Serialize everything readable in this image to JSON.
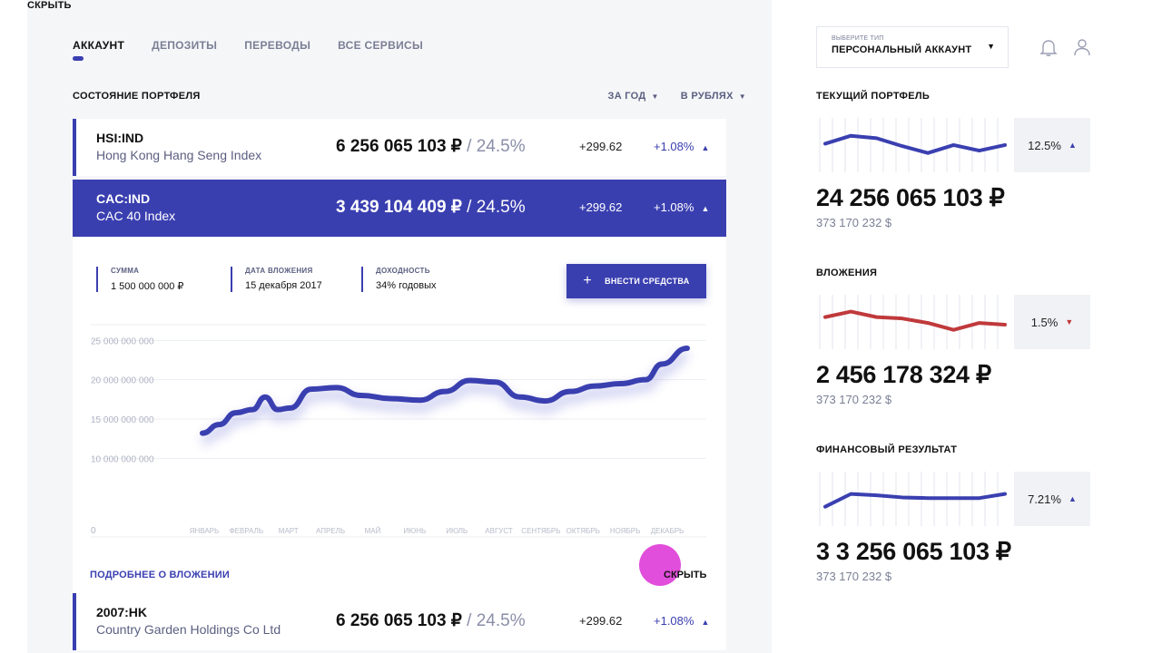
{
  "top_left_label": "СКРЫТЬ",
  "nav": {
    "tabs": [
      "АККАУНТ",
      "ДЕПОЗИТЫ",
      "ПЕРЕВОДЫ",
      "ВСЕ СЕРВИСЫ"
    ],
    "active": 0
  },
  "portfolio": {
    "title": "СОСТОЯНИЕ ПОРТФЕЛЯ",
    "filter_period": "ЗА ГОД",
    "filter_currency": "В РУБЛЯХ",
    "rows": [
      {
        "ticker": "HSI:IND",
        "name": "Hong Kong Hang Seng Index",
        "amount": "6 256 065 103 ₽",
        "share": "/ 24.5%",
        "change": "+299.62",
        "change_pct": "+1.08%"
      },
      {
        "ticker": "CAC:IND",
        "name": "CAC 40 Index",
        "amount": "3 439 104 409 ₽",
        "share": "/ 24.5%",
        "change": "+299.62",
        "change_pct": "+1.08%"
      },
      {
        "ticker": "2007:HK",
        "name": "Country Garden Holdings Co Ltd",
        "amount": "6 256 065 103 ₽",
        "share": "/ 24.5%",
        "change": "+299.62",
        "change_pct": "+1.08%"
      }
    ],
    "detail": {
      "stats": [
        {
          "label": "СУММА",
          "value": "1 500 000 000 ₽"
        },
        {
          "label": "ДАТА ВЛОЖЕНИЯ",
          "value": "15 декабря 2017"
        },
        {
          "label": "ДОХОДНОСТЬ",
          "value": "34% годовых"
        }
      ],
      "deposit_button": "ВНЕСТИ СРЕДСТВА",
      "more_link": "ПОДРОБНЕЕ О ВЛОЖЕНИИ",
      "hide_link": "СКРЫТЬ"
    }
  },
  "chart_data": {
    "type": "line",
    "categories": [
      "ЯНВАРЬ",
      "ФЕВРАЛЬ",
      "МАРТ",
      "АПРЕЛЬ",
      "МАЙ",
      "ИЮНЬ",
      "ИЮЛЬ",
      "АВГУСТ",
      "СЕНТЯБРЬ",
      "ОКТЯБРЬ",
      "НОЯБРЬ",
      "ДЕКАБРЬ"
    ],
    "y_ticks": [
      0,
      10000000000,
      15000000000,
      20000000000,
      25000000000
    ],
    "y_tick_labels": [
      "0",
      "10 000 000 000",
      "15 000 000 000",
      "20 000 000 000",
      "25 000 000 000"
    ],
    "x": [
      0,
      0.4,
      0.8,
      1.2,
      1.5,
      1.8,
      2.1,
      2.6,
      3.2,
      3.8,
      4.5,
      5.2,
      5.8,
      6.4,
      7.0,
      7.6,
      8.2,
      8.8,
      9.4,
      10.0,
      10.6,
      11.0,
      11.6
    ],
    "values": [
      13200000000,
      14300000000,
      15800000000,
      16200000000,
      17800000000,
      16200000000,
      16400000000,
      18800000000,
      19000000000,
      18000000000,
      17600000000,
      17400000000,
      18500000000,
      19900000000,
      19700000000,
      17800000000,
      17300000000,
      18500000000,
      19200000000,
      19500000000,
      20000000000,
      22000000000,
      24000000000
    ],
    "ylim": [
      0,
      27000000000
    ],
    "color": "#3a3fb0",
    "grid": true
  },
  "account": {
    "select_label": "ВЫБЕРИТЕ ТИП",
    "select_value": "ПЕРСОНАЛЬНЫЙ АККАУНТ"
  },
  "summary": [
    {
      "title": "ТЕКУЩИЙ ПОРТФЕЛЬ",
      "value": "24 256 065 103 ₽",
      "usd": "373 170 232 $",
      "pct": "12.5%",
      "trend": "up",
      "color": "#3a3fb0",
      "spark": [
        0.62,
        0.85,
        0.78,
        0.55,
        0.35,
        0.58,
        0.42,
        0.58
      ]
    },
    {
      "title": "ВЛОЖЕНИЯ",
      "value": "2 456 178 324 ₽",
      "usd": "373 170 232 $",
      "pct": "1.5%",
      "trend": "down",
      "color": "#c0393b",
      "spark": [
        0.72,
        0.88,
        0.72,
        0.68,
        0.55,
        0.35,
        0.55,
        0.5
      ]
    },
    {
      "title": "ФИНАНСОВЫЙ РЕЗУЛЬТАТ",
      "value": "3 3 256 065 103 ₽",
      "usd": "373 170 232 $",
      "pct": "7.21%",
      "trend": "up",
      "color": "#3a3fb0",
      "spark": [
        0.35,
        0.72,
        0.68,
        0.62,
        0.6,
        0.6,
        0.6,
        0.72
      ]
    }
  ]
}
